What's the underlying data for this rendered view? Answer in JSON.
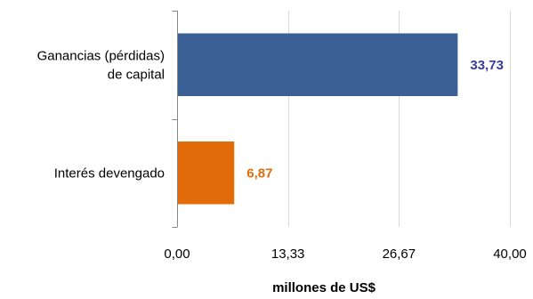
{
  "chart_data": {
    "type": "bar",
    "orientation": "horizontal",
    "categories": [
      "Ganancias (pérdidas)\nde capital",
      "Interés devengado"
    ],
    "values": [
      33.73,
      6.87
    ],
    "value_labels": [
      "33,73",
      "6,87"
    ],
    "colors": [
      "#3A5F94",
      "#E36C0A"
    ],
    "label_colors": [
      "#3B3B99",
      "#E36C0A"
    ],
    "xlabel": "millones de US$",
    "xlim": [
      0,
      40
    ],
    "xticks": [
      0,
      13.33,
      26.67,
      40
    ],
    "xtick_labels": [
      "0,00",
      "13,33",
      "26,67",
      "40,00"
    ],
    "grid": true,
    "legend": "none"
  }
}
